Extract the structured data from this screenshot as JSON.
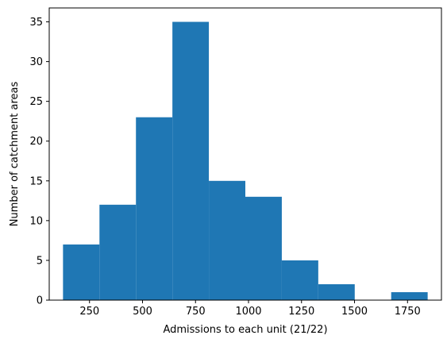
{
  "chart_data": {
    "type": "bar",
    "subtype": "histogram",
    "title": "",
    "xlabel": "Admissions to each unit (21/22)",
    "ylabel": "Number of catchment areas",
    "bin_edges": [
      125,
      297,
      469,
      641,
      813,
      985,
      1157,
      1329,
      1501,
      1673,
      1845
    ],
    "counts": [
      7,
      12,
      23,
      35,
      15,
      13,
      5,
      2,
      0,
      1
    ],
    "xlim": [
      60,
      1910
    ],
    "ylim": [
      0,
      36.75
    ],
    "xticks": [
      250,
      500,
      750,
      1000,
      1250,
      1500,
      1750
    ],
    "yticks": [
      0,
      5,
      10,
      15,
      20,
      25,
      30,
      35
    ],
    "bar_color": "#1f77b4",
    "grid": false,
    "legend": "none"
  }
}
